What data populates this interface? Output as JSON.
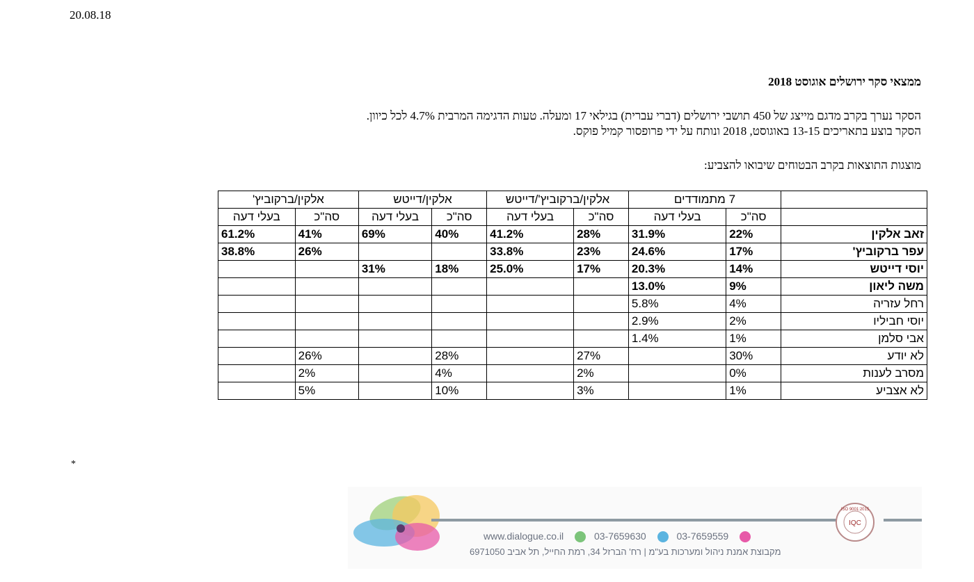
{
  "date": "20.08.18",
  "heading": "ממצאי סקר ירושלים אוגוסט 2018",
  "intro": {
    "line1": "הסקר נערך בקרב מדגם מייצג של 450 תושבי ירושלים (דברי עברית) בגילאי 17 ומעלה. טעות הדגימה המרבית 4.7% לכל כיוון.",
    "line2": "הסקר בוצע בתאריכים 13-15 באוגוסט, 2018   ונותח על ידי פרופסור קמיל פוקס."
  },
  "subheading": "מוצגות התוצאות בקרב הבטוחים שיבואו להצביע:",
  "table": {
    "groups": [
      "7 מתמודדים",
      "אלקין/ברקוביץ'/דייטש",
      "אלקין/דייטש",
      "אלקין/ברקוביץ'"
    ],
    "subheaders": [
      "סה\"כ",
      "בעלי דעה",
      "סה\"כ",
      "בעלי דעה",
      "סה\"כ",
      "בעלי דעה",
      "סה\"כ",
      "בעלי דעה"
    ],
    "rows": [
      {
        "name": "זאב אלקין",
        "bold": true,
        "cells": [
          "22%",
          "31.9%",
          "28%",
          "41.2%",
          "40%",
          "69%",
          "41%",
          "61.2%"
        ]
      },
      {
        "name": "עפר ברקוביץ'",
        "bold": true,
        "cells": [
          "17%",
          "24.6%",
          "23%",
          "33.8%",
          "",
          "",
          "26%",
          "38.8%"
        ]
      },
      {
        "name": "יוסי דייטש",
        "bold": true,
        "cells": [
          "14%",
          "20.3%",
          "17%",
          "25.0%",
          "18%",
          "31%",
          "",
          ""
        ]
      },
      {
        "name": "משה ליאון",
        "bold": true,
        "cells": [
          "9%",
          "13.0%",
          "",
          "",
          "",
          "",
          "",
          ""
        ]
      },
      {
        "name": "רחל עזריה",
        "bold": false,
        "cells": [
          "4%",
          "5.8%",
          "",
          "",
          "",
          "",
          "",
          ""
        ]
      },
      {
        "name": "יוסי חביליו",
        "bold": false,
        "cells": [
          "2%",
          "2.9%",
          "",
          "",
          "",
          "",
          "",
          ""
        ]
      },
      {
        "name": "אבי סלמן",
        "bold": false,
        "cells": [
          "1%",
          "1.4%",
          "",
          "",
          "",
          "",
          "",
          ""
        ]
      },
      {
        "name": "לא יודע",
        "bold": false,
        "cells": [
          "30%",
          "",
          "27%",
          "",
          "28%",
          "",
          "26%",
          ""
        ]
      },
      {
        "name": "מסרב לענות",
        "bold": false,
        "cells": [
          "0%",
          "",
          "2%",
          "",
          "4%",
          "",
          "2%",
          ""
        ]
      },
      {
        "name": "לא אצביע",
        "bold": false,
        "cells": [
          "1%",
          "",
          "3%",
          "",
          "10%",
          "",
          "5%",
          ""
        ]
      }
    ]
  },
  "footnote": "*",
  "footer": {
    "website": "www.dialogue.co.il",
    "phone1": "03-7659630",
    "phone2": "03-7659559",
    "address": "מקבוצת אמנת ניהול ומערכות בע\"מ | רח' הברזל 34, רמת החייל, תל אביב 6971050",
    "seal_text": "ISO 9001:2015",
    "seal_label": "IQC",
    "colors": {
      "line": "#8e9aa2",
      "text": "#6b7280",
      "icon_green": "#7cc47a",
      "icon_blue": "#5bb4e0",
      "icon_pink": "#e75aa8"
    }
  }
}
